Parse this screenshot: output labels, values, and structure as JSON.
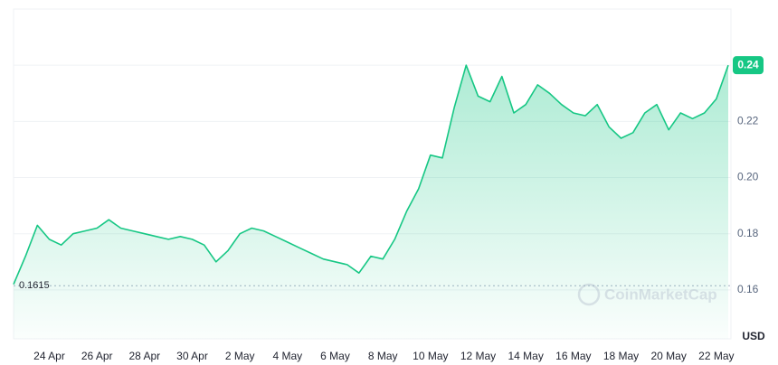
{
  "chart_data": {
    "type": "area",
    "categories": [
      null,
      null,
      null,
      "24 Apr",
      null,
      null,
      null,
      "26 Apr",
      null,
      null,
      null,
      "28 Apr",
      null,
      null,
      null,
      "30 Apr",
      null,
      null,
      null,
      "2 May",
      null,
      null,
      null,
      "4 May",
      null,
      null,
      null,
      "6 May",
      null,
      null,
      null,
      "8 May",
      null,
      null,
      null,
      "10 May",
      null,
      null,
      null,
      "12 May",
      null,
      null,
      null,
      "14 May",
      null,
      null,
      null,
      "16 May",
      null,
      null,
      null,
      "18 May",
      null,
      null,
      null,
      "20 May",
      null,
      null,
      null,
      "22 May",
      null
    ],
    "series": [
      {
        "color": "#16c784",
        "values": [
          0.162,
          0.172,
          0.183,
          0.178,
          0.176,
          0.18,
          0.181,
          0.182,
          0.185,
          0.182,
          0.181,
          0.18,
          0.179,
          0.178,
          0.179,
          0.178,
          0.176,
          0.17,
          0.174,
          0.18,
          0.182,
          0.181,
          0.179,
          0.177,
          0.175,
          0.173,
          0.171,
          0.17,
          0.169,
          0.166,
          0.172,
          0.171,
          0.178,
          0.188,
          0.196,
          0.208,
          0.207,
          0.225,
          0.24,
          0.229,
          0.227,
          0.236,
          0.223,
          0.226,
          0.233,
          0.23,
          0.226,
          0.223,
          0.222,
          0.226,
          0.218,
          0.214,
          0.216,
          0.223,
          0.226,
          0.217,
          0.223,
          0.221,
          0.223,
          0.228,
          0.24
        ]
      }
    ],
    "ylim": [
      0.1426,
      0.26
    ],
    "yticks": [
      0.16,
      0.18,
      {
        "value": 0.2,
        "label": "0.20"
      },
      0.22,
      0.24
    ],
    "grid": true,
    "reference_line": 0.1615,
    "y_axis_label": "USD",
    "watermark": "CoinMarketCap"
  }
}
